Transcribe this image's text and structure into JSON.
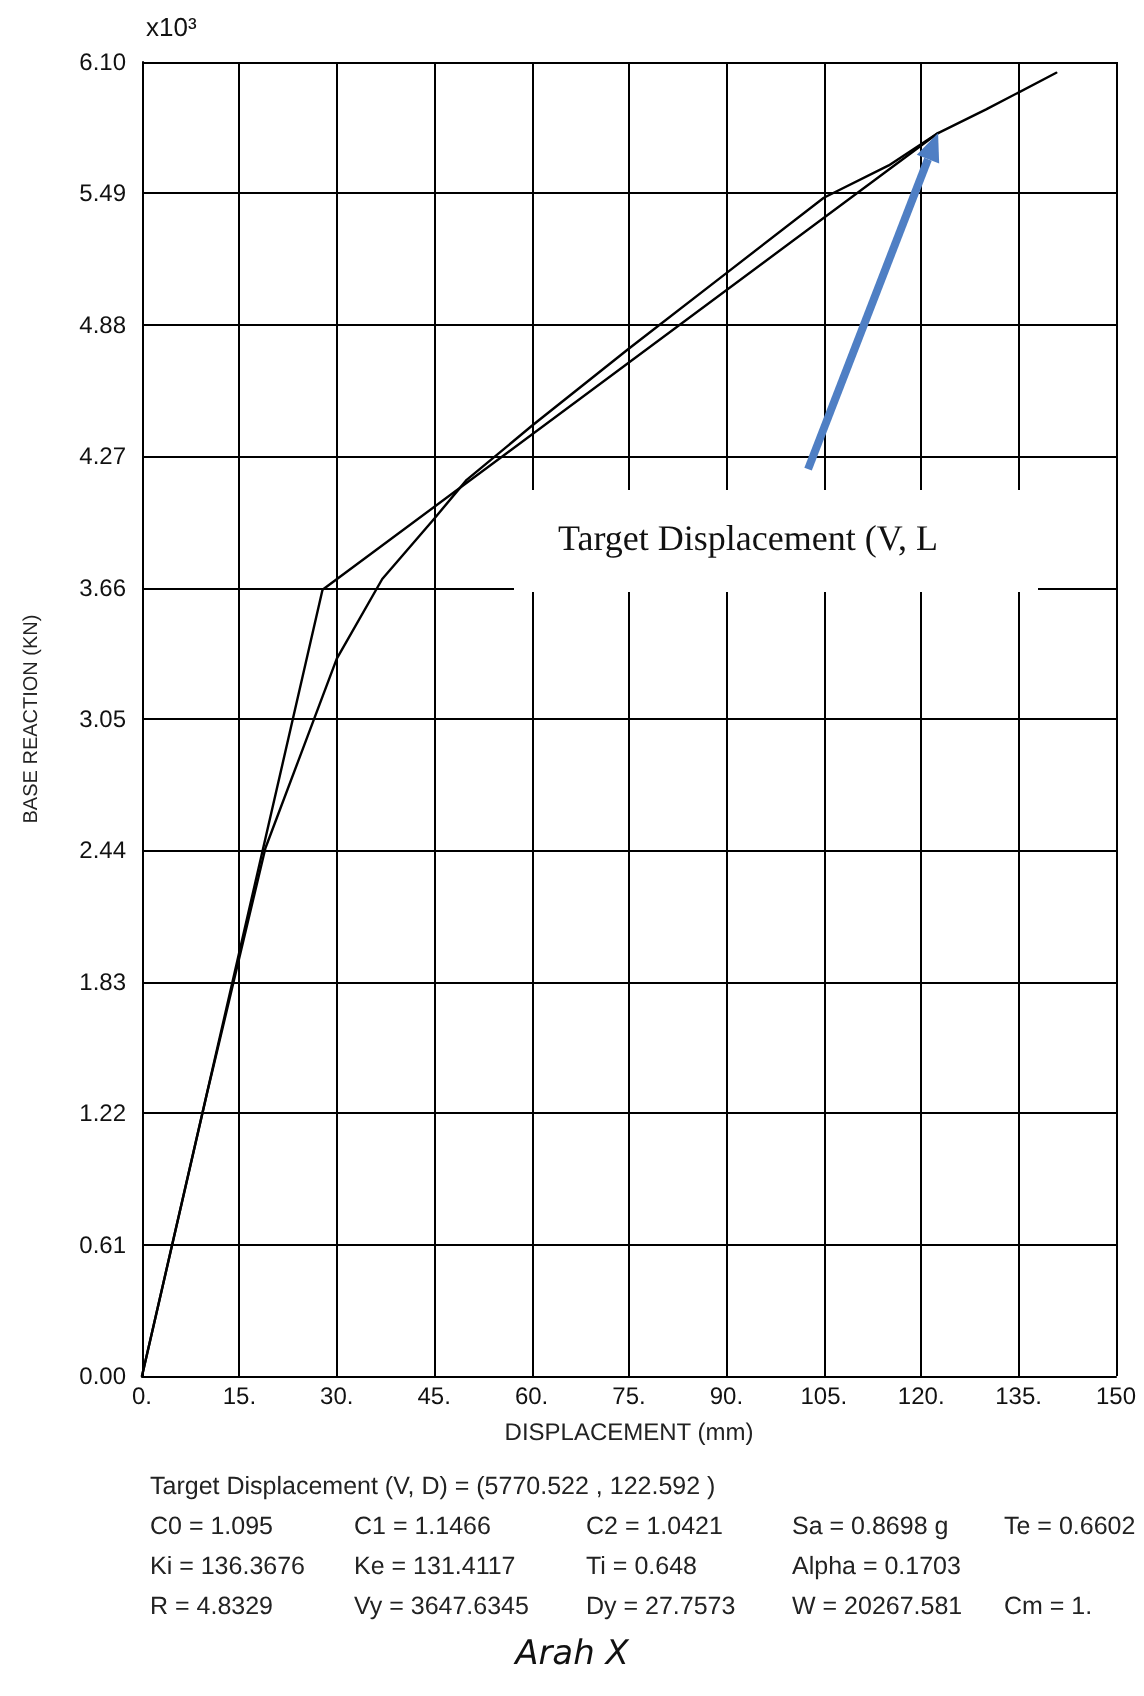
{
  "chart_data": {
    "type": "line",
    "xlabel": "DISPLACEMENT (mm)",
    "ylabel": "BASE REACTION (KN)",
    "series": [
      {
        "color": "#000000",
        "x": [
          0,
          10,
          19,
          24,
          30,
          37,
          45,
          50,
          60,
          75,
          90,
          105,
          115,
          122.6,
          130,
          140.8
        ],
        "values": [
          0,
          1.31,
          2.45,
          2.85,
          3.33,
          3.7,
          3.98,
          4.16,
          4.41,
          4.77,
          5.12,
          5.47,
          5.62,
          5.77,
          5.88,
          6.05
        ]
      },
      {
        "color": "#000000",
        "x": [
          0,
          27.8,
          122.6
        ],
        "values": [
          0,
          3.65,
          5.77
        ]
      }
    ],
    "xlim": [
      0,
      150
    ],
    "ylim": [
      0,
      6.1
    ],
    "xticks": [
      {
        "value": 0,
        "label": "0."
      },
      {
        "value": 15,
        "label": "15."
      },
      {
        "value": 30,
        "label": "30."
      },
      {
        "value": 45,
        "label": "45."
      },
      {
        "value": 60,
        "label": "60."
      },
      {
        "value": 75,
        "label": "75."
      },
      {
        "value": 90,
        "label": "90."
      },
      {
        "value": 105,
        "label": "105."
      },
      {
        "value": 120,
        "label": "120."
      },
      {
        "value": 135,
        "label": "135."
      },
      {
        "value": 150,
        "label": "150"
      }
    ],
    "yticks": [
      {
        "value": 0,
        "label": "0.00"
      },
      {
        "value": 0.61,
        "label": "0.61"
      },
      {
        "value": 1.22,
        "label": "1.22"
      },
      {
        "value": 1.83,
        "label": "1.83"
      },
      {
        "value": 2.44,
        "label": "2.44"
      },
      {
        "value": 3.05,
        "label": "3.05"
      },
      {
        "value": 3.66,
        "label": "3.66"
      },
      {
        "value": 4.27,
        "label": "4.27"
      },
      {
        "value": 4.88,
        "label": "4.88"
      },
      {
        "value": 5.49,
        "label": "5.49"
      },
      {
        "value": 6.1,
        "label": "6.10"
      }
    ],
    "grid": true,
    "marker": "none",
    "line_style": "solid",
    "annotations": [
      "Target Displacement (V, L",
      "x10³",
      "Target Displacement (V, D) = (5770.522 , 122.592 )",
      "C0 = 1.095",
      "C1 = 1.1466",
      "C2 = 1.0421",
      "Sa = 0.8698 g",
      "Te = 0.6602",
      "Ki = 136.3676",
      "Ke = 131.4117",
      "Ti = 0.648",
      "Alpha = 0.1703",
      "R = 4.8329",
      "Vy = 3647.6345",
      "Dy = 27.7573",
      "W = 20267.581",
      "Cm = 1.",
      "Arah X"
    ]
  }
}
